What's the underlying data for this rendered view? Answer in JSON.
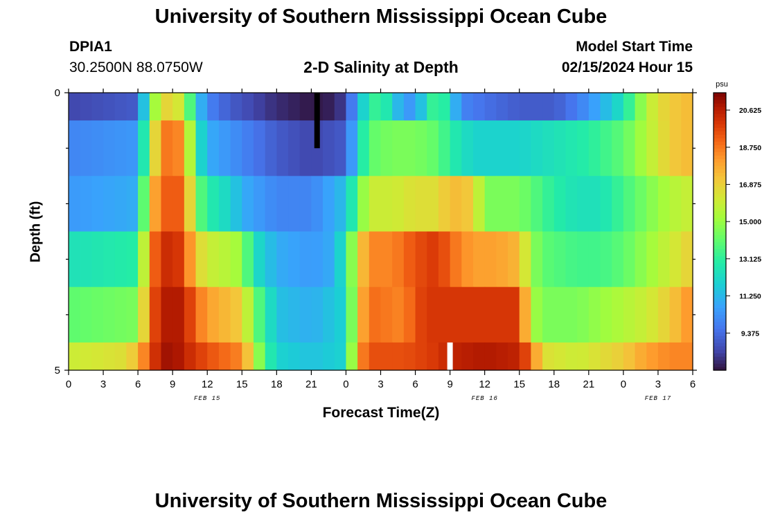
{
  "page": {
    "title": "University of Southern Mississippi Ocean Cube",
    "footer_title": "University of Southern Mississippi Ocean Cube",
    "station_id": "DPIA1",
    "station_coords": "30.2500N  88.0750W",
    "plot_title": "2-D Salinity at Depth",
    "model_start_label": "Model Start Time",
    "model_start_value": "02/15/2024 Hour 15"
  },
  "chart_data": {
    "type": "heatmap",
    "title": "2-D Salinity at Depth",
    "xlabel": "Forecast Time(Z)",
    "ylabel": "Depth (ft)",
    "x_unit": "forecast hour from 00Z Feb 15",
    "x_range": [
      0,
      54
    ],
    "x_step_hours": 1,
    "x_ticks": [
      0,
      3,
      6,
      9,
      12,
      15,
      18,
      21,
      24,
      27,
      30,
      33,
      36,
      39,
      42,
      45,
      48,
      51,
      54
    ],
    "x_tick_labels": [
      "0",
      "3",
      "6",
      "9",
      "12",
      "15",
      "18",
      "21",
      "0",
      "3",
      "6",
      "9",
      "12",
      "15",
      "18",
      "21",
      "0",
      "3",
      "6"
    ],
    "date_labels": [
      {
        "x": 12,
        "text": "FEB 15"
      },
      {
        "x": 36,
        "text": "FEB 16"
      },
      {
        "x": 51,
        "text": "FEB 17"
      }
    ],
    "y_range": [
      0,
      5
    ],
    "y_ticks": [
      0,
      5
    ],
    "y_minor_ticks": [
      1,
      2,
      3,
      4
    ],
    "y_tick_labels": [
      "0",
      "5"
    ],
    "colorbar": {
      "unit": "psu",
      "min": 7.5,
      "max": 21.5,
      "ticks": [
        9.375,
        11.25,
        13.125,
        15.0,
        16.875,
        18.75,
        20.625
      ],
      "tick_labels": [
        "9.375",
        "11.250",
        "13.125",
        "15.000",
        "16.875",
        "18.750",
        "20.625"
      ]
    },
    "row_depths": [
      0.25,
      1.25,
      2.25,
      3.25,
      4.25,
      4.75
    ],
    "row_breakpoints": [
      [
        [
          0,
          8.5
        ],
        [
          6,
          9.0
        ],
        [
          7,
          14.0
        ],
        [
          8,
          16.5
        ],
        [
          9,
          17.0
        ],
        [
          10,
          15.5
        ],
        [
          11,
          12.0
        ],
        [
          12,
          10.0
        ],
        [
          14,
          9.0
        ],
        [
          16,
          8.5
        ],
        [
          18,
          8.0
        ],
        [
          21,
          7.6
        ],
        [
          23,
          7.8
        ],
        [
          24,
          8.5
        ],
        [
          25,
          11.0
        ],
        [
          26,
          13.0
        ],
        [
          27,
          13.5
        ],
        [
          28,
          12.0
        ],
        [
          29,
          10.5
        ],
        [
          30,
          10.5
        ],
        [
          31,
          12.5
        ],
        [
          32,
          14.0
        ],
        [
          33,
          12.0
        ],
        [
          34,
          10.0
        ],
        [
          36,
          9.5
        ],
        [
          39,
          9.0
        ],
        [
          42,
          9.0
        ],
        [
          44,
          9.8
        ],
        [
          46,
          11.0
        ],
        [
          48,
          12.5
        ],
        [
          49,
          14.0
        ],
        [
          50,
          15.5
        ],
        [
          51,
          16.5
        ],
        [
          52,
          17.0
        ],
        [
          54,
          17.5
        ]
      ],
      [
        [
          0,
          10.0
        ],
        [
          6,
          10.5
        ],
        [
          7,
          15.0
        ],
        [
          8,
          18.5
        ],
        [
          9,
          19.0
        ],
        [
          10,
          18.0
        ],
        [
          11,
          13.0
        ],
        [
          12,
          11.0
        ],
        [
          15,
          10.0
        ],
        [
          18,
          9.0
        ],
        [
          21,
          8.5
        ],
        [
          24,
          9.0
        ],
        [
          25,
          12.0
        ],
        [
          26,
          14.0
        ],
        [
          28,
          14.5
        ],
        [
          30,
          14.5
        ],
        [
          32,
          14.0
        ],
        [
          33,
          13.0
        ],
        [
          35,
          12.0
        ],
        [
          39,
          12.0
        ],
        [
          42,
          12.5
        ],
        [
          45,
          13.0
        ],
        [
          48,
          14.0
        ],
        [
          50,
          15.5
        ],
        [
          52,
          17.0
        ],
        [
          54,
          17.5
        ]
      ],
      [
        [
          0,
          10.5
        ],
        [
          6,
          11.0
        ],
        [
          7,
          17.0
        ],
        [
          8,
          19.0
        ],
        [
          9,
          19.5
        ],
        [
          10,
          19.0
        ],
        [
          11,
          14.5
        ],
        [
          12,
          13.0
        ],
        [
          14,
          12.0
        ],
        [
          15,
          11.0
        ],
        [
          18,
          10.0
        ],
        [
          21,
          10.0
        ],
        [
          24,
          11.5
        ],
        [
          25,
          14.0
        ],
        [
          26,
          16.0
        ],
        [
          28,
          16.0
        ],
        [
          30,
          16.5
        ],
        [
          32,
          16.5
        ],
        [
          33,
          17.5
        ],
        [
          35,
          17.0
        ],
        [
          36,
          14.5
        ],
        [
          39,
          14.5
        ],
        [
          40,
          14.0
        ],
        [
          42,
          13.0
        ],
        [
          44,
          12.5
        ],
        [
          46,
          12.5
        ],
        [
          48,
          13.5
        ],
        [
          50,
          14.5
        ],
        [
          52,
          15.5
        ],
        [
          54,
          16.0
        ]
      ],
      [
        [
          0,
          12.5
        ],
        [
          6,
          13.0
        ],
        [
          7,
          18.5
        ],
        [
          8,
          20.0
        ],
        [
          9,
          20.5
        ],
        [
          10,
          19.5
        ],
        [
          11,
          17.0
        ],
        [
          12,
          16.0
        ],
        [
          14,
          15.5
        ],
        [
          15,
          15.0
        ],
        [
          16,
          12.5
        ],
        [
          18,
          11.0
        ],
        [
          21,
          10.5
        ],
        [
          23,
          11.0
        ],
        [
          24,
          13.0
        ],
        [
          25,
          16.5
        ],
        [
          26,
          18.5
        ],
        [
          28,
          18.5
        ],
        [
          30,
          19.5
        ],
        [
          32,
          20.0
        ],
        [
          33,
          19.0
        ],
        [
          35,
          18.0
        ],
        [
          37,
          18.0
        ],
        [
          39,
          17.5
        ],
        [
          40,
          15.0
        ],
        [
          41,
          14.0
        ],
        [
          44,
          13.5
        ],
        [
          46,
          13.5
        ],
        [
          48,
          14.0
        ],
        [
          50,
          15.0
        ],
        [
          52,
          16.0
        ],
        [
          54,
          17.0
        ]
      ],
      [
        [
          0,
          14.0
        ],
        [
          6,
          14.5
        ],
        [
          7,
          19.0
        ],
        [
          8,
          20.5
        ],
        [
          9,
          21.0
        ],
        [
          10,
          20.5
        ],
        [
          11,
          19.0
        ],
        [
          12,
          18.0
        ],
        [
          15,
          17.0
        ],
        [
          16,
          14.5
        ],
        [
          17,
          13.0
        ],
        [
          18,
          11.5
        ],
        [
          21,
          11.0
        ],
        [
          24,
          12.0
        ],
        [
          25,
          17.0
        ],
        [
          26,
          19.0
        ],
        [
          29,
          18.5
        ],
        [
          30,
          19.5
        ],
        [
          31,
          20.0
        ],
        [
          39,
          20.0
        ],
        [
          40,
          15.5
        ],
        [
          41,
          14.5
        ],
        [
          44,
          14.5
        ],
        [
          46,
          15.0
        ],
        [
          48,
          15.5
        ],
        [
          50,
          16.0
        ],
        [
          52,
          17.0
        ],
        [
          54,
          18.5
        ]
      ],
      [
        [
          0,
          16.0
        ],
        [
          5,
          16.5
        ],
        [
          6,
          17.5
        ],
        [
          7,
          19.5
        ],
        [
          8,
          20.8
        ],
        [
          9,
          21.2
        ],
        [
          10,
          20.5
        ],
        [
          12,
          19.5
        ],
        [
          15,
          18.5
        ],
        [
          16,
          16.0
        ],
        [
          17,
          13.5
        ],
        [
          18,
          12.0
        ],
        [
          21,
          11.5
        ],
        [
          24,
          12.0
        ],
        [
          25,
          18.0
        ],
        [
          26,
          19.5
        ],
        [
          29,
          19.5
        ],
        [
          32,
          20.0
        ],
        [
          33,
          20.5
        ],
        [
          36,
          20.8
        ],
        [
          39,
          20.5
        ],
        [
          40,
          19.0
        ],
        [
          41,
          16.5
        ],
        [
          44,
          16.0
        ],
        [
          46,
          16.5
        ],
        [
          48,
          17.0
        ],
        [
          50,
          18.0
        ],
        [
          52,
          18.5
        ],
        [
          54,
          18.5
        ]
      ]
    ],
    "missing_cells": [
      {
        "x": 21.5,
        "y0": 0,
        "y1": 1,
        "color": "#000000"
      },
      {
        "x": 33,
        "y0": 4.5,
        "y1": 5,
        "color": "#ffffff"
      }
    ]
  }
}
